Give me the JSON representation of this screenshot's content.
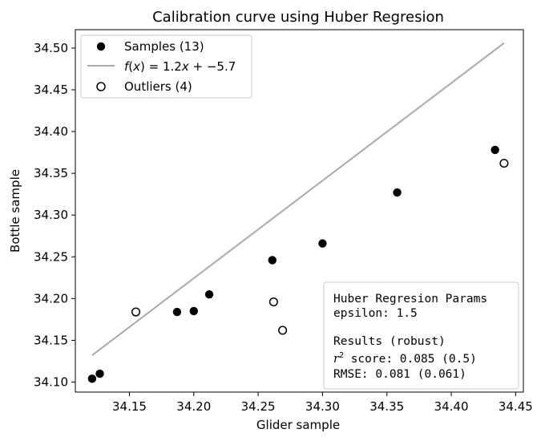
{
  "chart_data": {
    "type": "scatter",
    "title": "Calibration curve using Huber Regresion",
    "xlabel": "Glider sample",
    "ylabel": "Bottle sample",
    "xlim": [
      34.108,
      34.456
    ],
    "ylim": [
      34.088,
      34.522
    ],
    "xticks": [
      "34.15",
      "34.20",
      "34.25",
      "34.30",
      "34.35",
      "34.40",
      "34.45"
    ],
    "yticks": [
      "34.10",
      "34.15",
      "34.20",
      "34.25",
      "34.30",
      "34.35",
      "34.40",
      "34.45",
      "34.50"
    ],
    "grid": false,
    "legend_position": "top-left",
    "series": [
      {
        "name": "Samples (13)",
        "marker": "filled-circle",
        "color": "#000000",
        "points": [
          [
            34.121,
            34.104
          ],
          [
            34.127,
            34.11
          ],
          [
            34.187,
            34.184
          ],
          [
            34.2,
            34.185
          ],
          [
            34.212,
            34.205
          ],
          [
            34.261,
            34.246
          ],
          [
            34.3,
            34.266
          ],
          [
            34.358,
            34.327
          ],
          [
            34.434,
            34.378
          ]
        ]
      },
      {
        "name": "Outliers (4)",
        "marker": "open-circle",
        "color": "#000000",
        "points": [
          [
            34.155,
            34.184
          ],
          [
            34.262,
            34.196
          ],
          [
            34.269,
            34.162
          ],
          [
            34.441,
            34.362
          ]
        ]
      }
    ],
    "fit_line": {
      "label_prefix": "f(x) = 1.2x + −5.7",
      "color": "#aaaaaa",
      "x": [
        34.121,
        34.441
      ],
      "y": [
        34.132,
        34.506
      ]
    },
    "legend": {
      "samples_label": "Samples (13)",
      "line_label_prefix": "f(x) = 1.2x + −5.7",
      "outliers_label": "Outliers (4)"
    },
    "annotation": {
      "line1": "Huber Regresion Params",
      "line2": "epsilon: 1.5",
      "line3": "Results (robust)",
      "line4_pre": "r",
      "line4_sup": "2",
      "line4_post": " score: 0.085 (0.5)",
      "line5": "RMSE: 0.081 (0.061)"
    }
  }
}
